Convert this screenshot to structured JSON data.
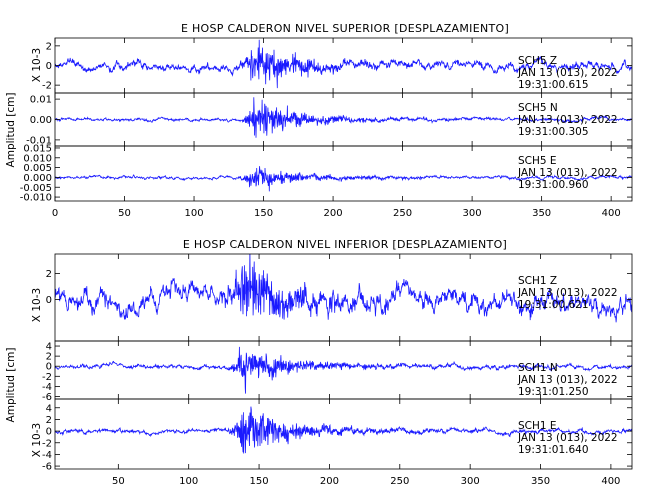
{
  "chart_data": [
    {
      "type": "line",
      "title": "E HOSP CALDERON NIVEL SUPERIOR [DESPLAZAMIENTO]",
      "xlim": [
        0,
        415
      ],
      "x_ticks": [
        "0",
        "50",
        "100",
        "150",
        "200",
        "250",
        "300",
        "350",
        "400"
      ],
      "ylabel": "Amplitud [cm]",
      "panels": [
        {
          "ylabel": "X 10-3",
          "ylim": [
            -2.8,
            2.8
          ],
          "y_ticks": [
            "2",
            "0",
            "-2"
          ],
          "annotation": [
            "SCH5   Z",
            "JAN 13 (013), 2022",
            "19:31:00.615"
          ],
          "series": {
            "name": "SCH5 Z",
            "noise": 0.42,
            "peak": 2.4,
            "peak_time": 145
          }
        },
        {
          "ylabel": "",
          "ylim": [
            -0.013,
            0.013
          ],
          "y_ticks": [
            "0.01",
            "0.00",
            "-0.01"
          ],
          "annotation": [
            "SCH5   N",
            "JAN 13 (013), 2022",
            "19:31:00.305"
          ],
          "series": {
            "name": "SCH5 N",
            "noise": 0.0007,
            "peak": 0.0095,
            "peak_time": 145
          }
        },
        {
          "ylabel": "",
          "ylim": [
            -0.012,
            0.016
          ],
          "y_ticks": [
            "0.015",
            "0.010",
            "0.005",
            "0.000",
            "-0.005",
            "-0.010"
          ],
          "annotation": [
            "SCH5   E",
            "JAN 13 (013), 2022",
            "19:31:00.960"
          ],
          "series": {
            "name": "SCH5 E",
            "noise": 0.0007,
            "peak": 0.007,
            "peak_time": 145
          }
        }
      ]
    },
    {
      "type": "line",
      "title": "E HOSP CALDERON NIVEL INFERIOR [DESPLAZAMIENTO]",
      "xlim": [
        5,
        415
      ],
      "x_ticks": [
        "50",
        "100",
        "150",
        "200",
        "250",
        "300",
        "350",
        "400"
      ],
      "ylabel": "Amplitud [cm]",
      "panels": [
        {
          "ylabel": "X 10-3",
          "ylim": [
            -3.2,
            3.5
          ],
          "y_ticks": [
            "2",
            "0"
          ],
          "annotation": [
            "SCH1   Z",
            "JAN 13 (013), 2022",
            "19:31:00.621"
          ],
          "series": {
            "name": "SCH1 Z",
            "noise": 0.75,
            "peak": 2.8,
            "peak_time": 140
          }
        },
        {
          "ylabel": "",
          "ylim": [
            -6.5,
            5
          ],
          "y_ticks": [
            "4",
            "2",
            "0",
            "-2",
            "-4",
            "-6"
          ],
          "annotation": [
            "SCH1   N",
            "JAN 13 (013), 2022",
            "19:31:01.250"
          ],
          "series": {
            "name": "SCH1 N",
            "noise": 0.4,
            "peak": 4.2,
            "peak_time": 140
          }
        },
        {
          "ylabel": "X 10-3",
          "ylim": [
            -6.5,
            5.5
          ],
          "y_ticks": [
            "4",
            "2",
            "0",
            "-2",
            "-4",
            "-6"
          ],
          "annotation": [
            "SCH1   E",
            "JAN 13 (013), 2022",
            "19:31:01.640"
          ],
          "series": {
            "name": "SCH1 E",
            "noise": 0.35,
            "peak": 4.5,
            "peak_time": 140
          }
        }
      ]
    }
  ]
}
